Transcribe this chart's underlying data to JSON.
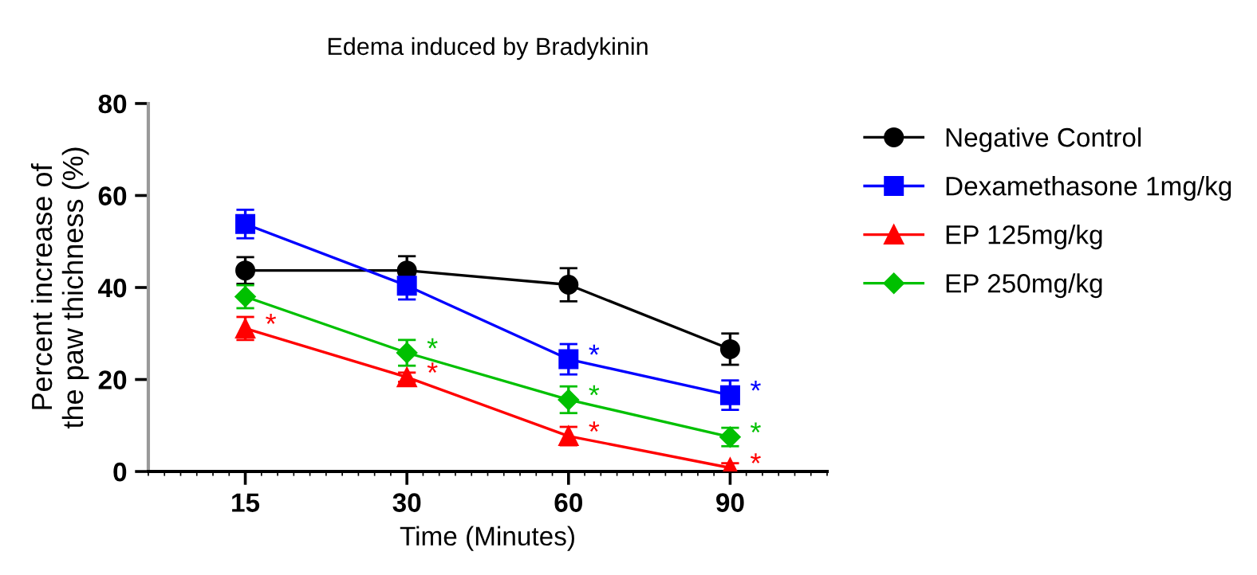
{
  "chart_data": {
    "type": "line",
    "title": "Edema induced by Bradykinin",
    "xlabel": "Time (Minutes)",
    "ylabel": "Percent increase of\nthe paw thichness (%)",
    "categories": [
      "15",
      "30",
      "60",
      "90"
    ],
    "ylim": [
      0,
      80
    ],
    "yticks": [
      0,
      20,
      40,
      60,
      80
    ],
    "grid": false,
    "legend": "right",
    "series": [
      {
        "name": "Negative Control",
        "color": "#000000",
        "marker": "circle",
        "values": [
          43.7,
          43.7,
          40.6,
          26.6
        ],
        "errors": [
          2.9,
          3.1,
          3.6,
          3.4
        ]
      },
      {
        "name": "Dexamethasone 1mg/kg",
        "color": "#0000ff",
        "marker": "square",
        "values": [
          53.8,
          40.4,
          24.4,
          16.6
        ],
        "errors": [
          3.1,
          3.0,
          3.3,
          3.2
        ]
      },
      {
        "name": "EP 125mg/kg",
        "color": "#ff0000",
        "marker": "triangle",
        "values": [
          31.1,
          20.5,
          7.7,
          0.8
        ],
        "errors": [
          2.5,
          1.0,
          2.0,
          1.0
        ]
      },
      {
        "name": "EP 250mg/kg",
        "color": "#00c000",
        "marker": "diamond",
        "values": [
          38.0,
          25.8,
          15.6,
          7.5
        ],
        "errors": [
          2.5,
          2.8,
          2.9,
          2.0
        ]
      }
    ],
    "annotations": [
      {
        "text": "*",
        "x": "15",
        "y": 31.1
      },
      {
        "text": "*",
        "x": "30",
        "y": 20.5
      },
      {
        "text": "*",
        "x": "30",
        "y": 25.8
      },
      {
        "text": "*",
        "x": "60",
        "y": 24.4
      },
      {
        "text": "*",
        "x": "60",
        "y": 15.6
      },
      {
        "text": "*",
        "x": "60",
        "y": 7.7
      },
      {
        "text": "*",
        "x": "90",
        "y": 16.6
      },
      {
        "text": "*",
        "x": "90",
        "y": 7.5
      },
      {
        "text": "*",
        "x": "90",
        "y": 0.8
      }
    ]
  }
}
